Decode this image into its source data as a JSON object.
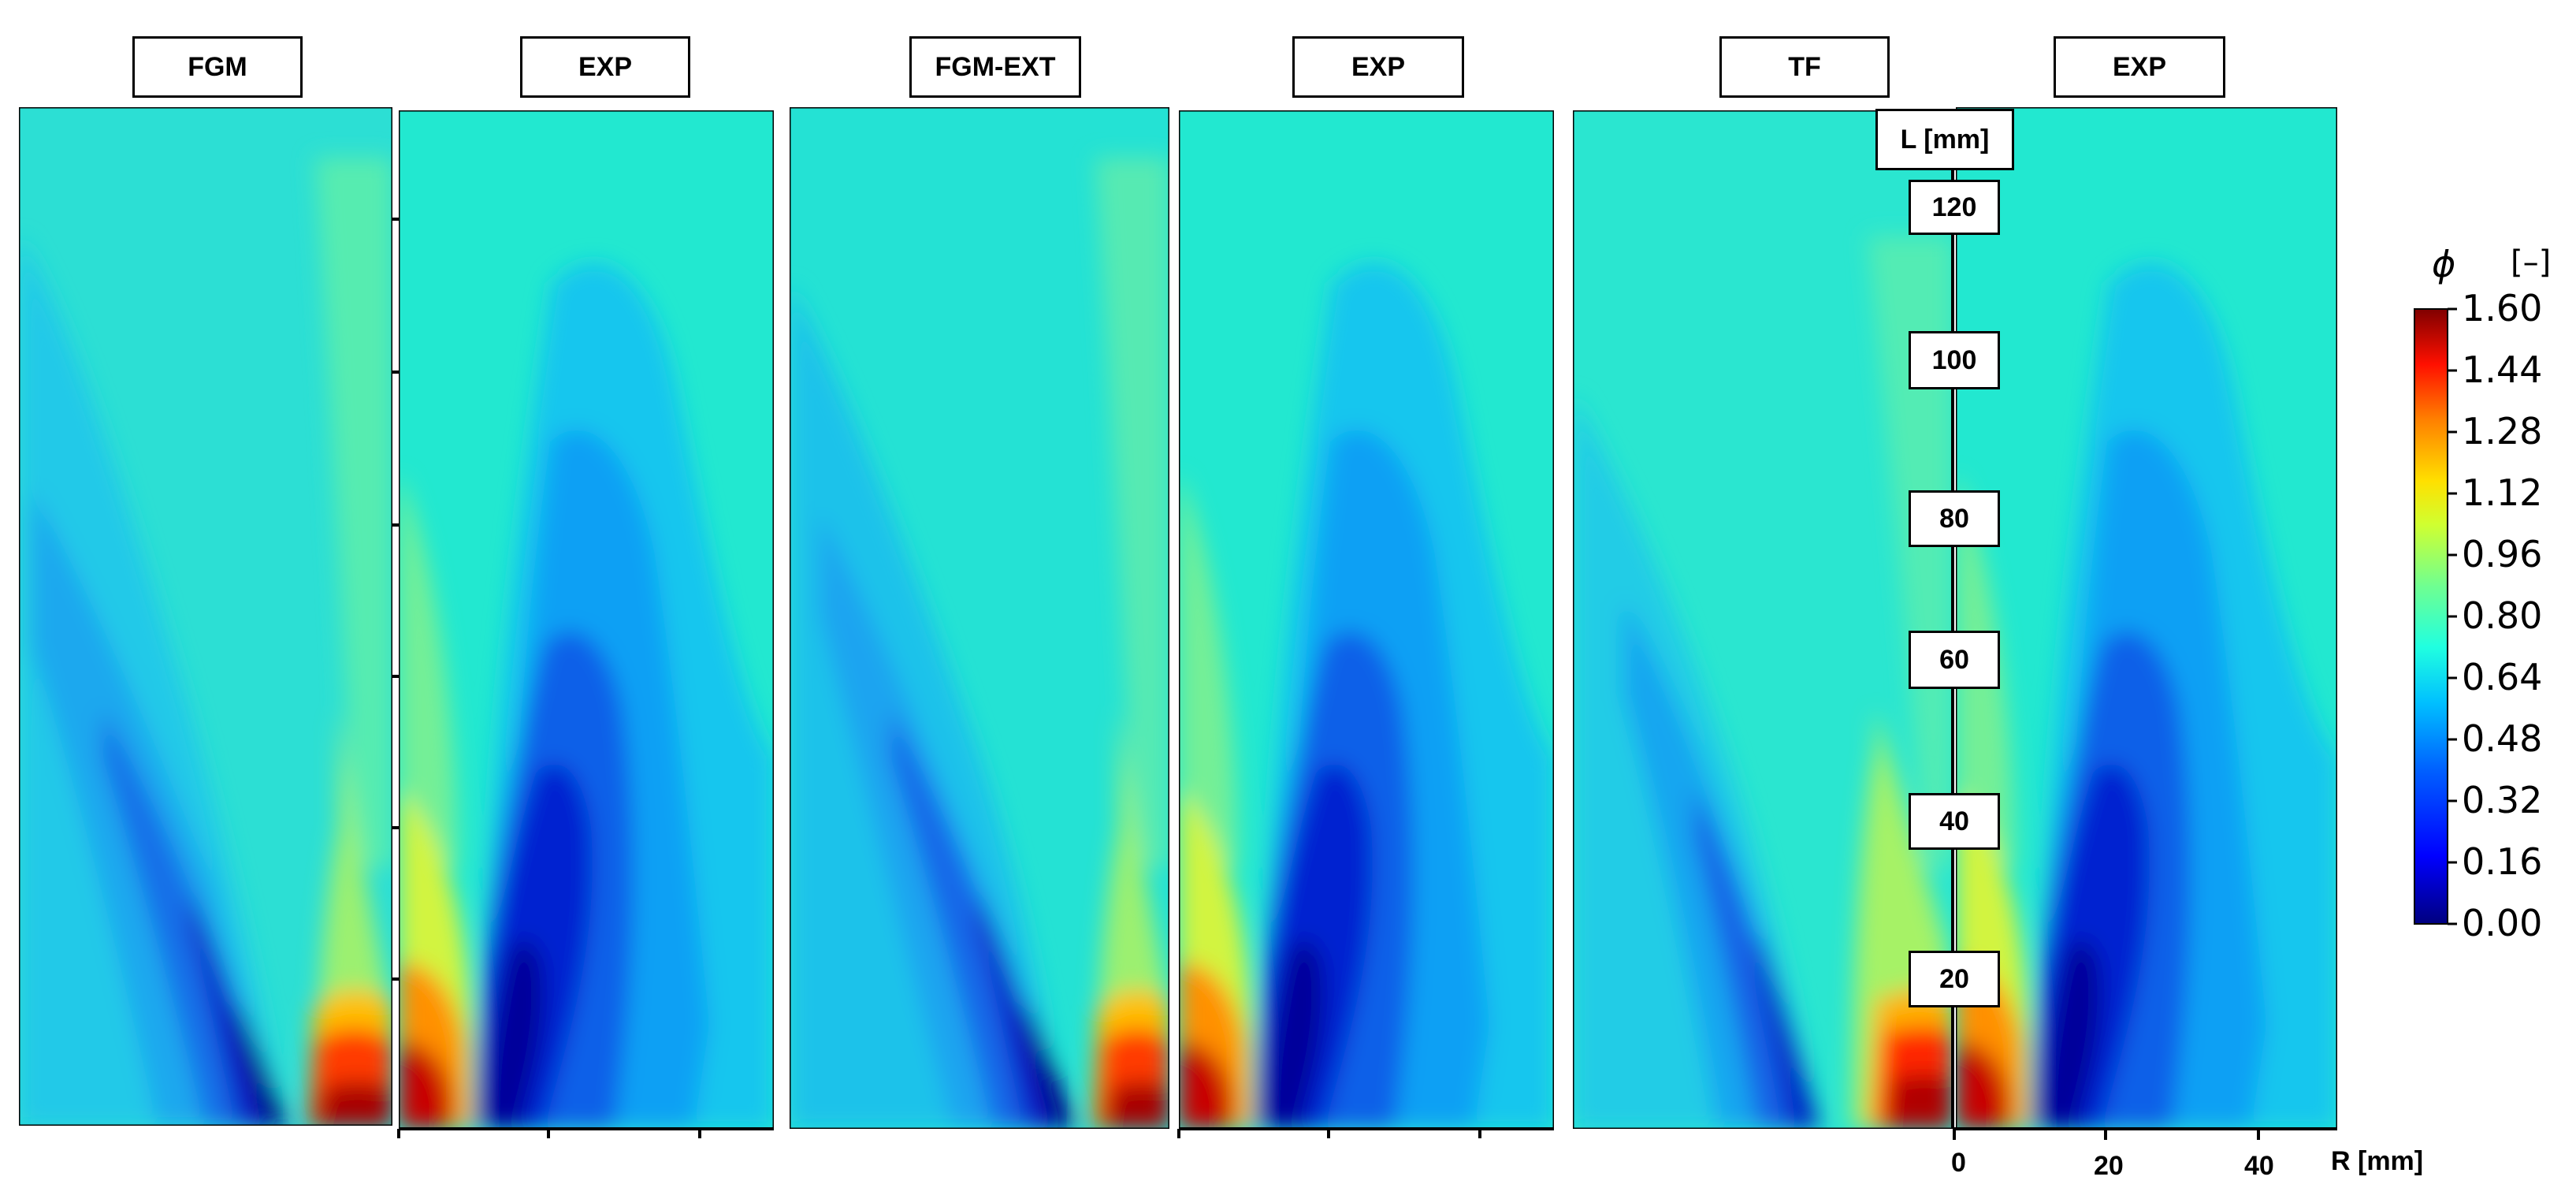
{
  "panels": [
    {
      "label": "FGM"
    },
    {
      "label": "EXP"
    },
    {
      "label": "FGM-EXT"
    },
    {
      "label": "EXP"
    },
    {
      "label": "TF"
    },
    {
      "label": "EXP"
    }
  ],
  "axis": {
    "l_label": "L [mm]",
    "l_ticks": [
      "120",
      "100",
      "80",
      "60",
      "40",
      "20"
    ],
    "r_label": "R [mm]",
    "r_ticks": [
      "0",
      "20",
      "40"
    ]
  },
  "colorbar": {
    "symbol": "ϕ",
    "unit": "[–]",
    "ticks": [
      "1.60",
      "1.44",
      "1.28",
      "1.12",
      "0.96",
      "0.80",
      "0.64",
      "0.48",
      "0.32",
      "0.16",
      "0.00"
    ],
    "colors": [
      "#800000",
      "#ff0000",
      "#ffa000",
      "#ffff00",
      "#9fff60",
      "#30ffc8",
      "#00d8ff",
      "#0090ff",
      "#0000ff",
      "#00008f"
    ]
  },
  "chart_data": {
    "type": "heatmap",
    "title": "",
    "xlabel": "R [mm]",
    "ylabel": "L [mm]",
    "panels": [
      "FGM",
      "EXP",
      "FGM-EXT",
      "EXP",
      "TF",
      "EXP"
    ],
    "x_ticks": [
      0,
      20,
      40
    ],
    "y_ticks": [
      20,
      40,
      60,
      80,
      100,
      120
    ],
    "colorbar_label": "ϕ [–]",
    "colorbar_range": [
      0.0,
      1.6
    ],
    "colorbar_ticks": [
      0.0,
      0.16,
      0.32,
      0.48,
      0.64,
      0.8,
      0.96,
      1.12,
      1.28,
      1.44,
      1.6
    ]
  }
}
